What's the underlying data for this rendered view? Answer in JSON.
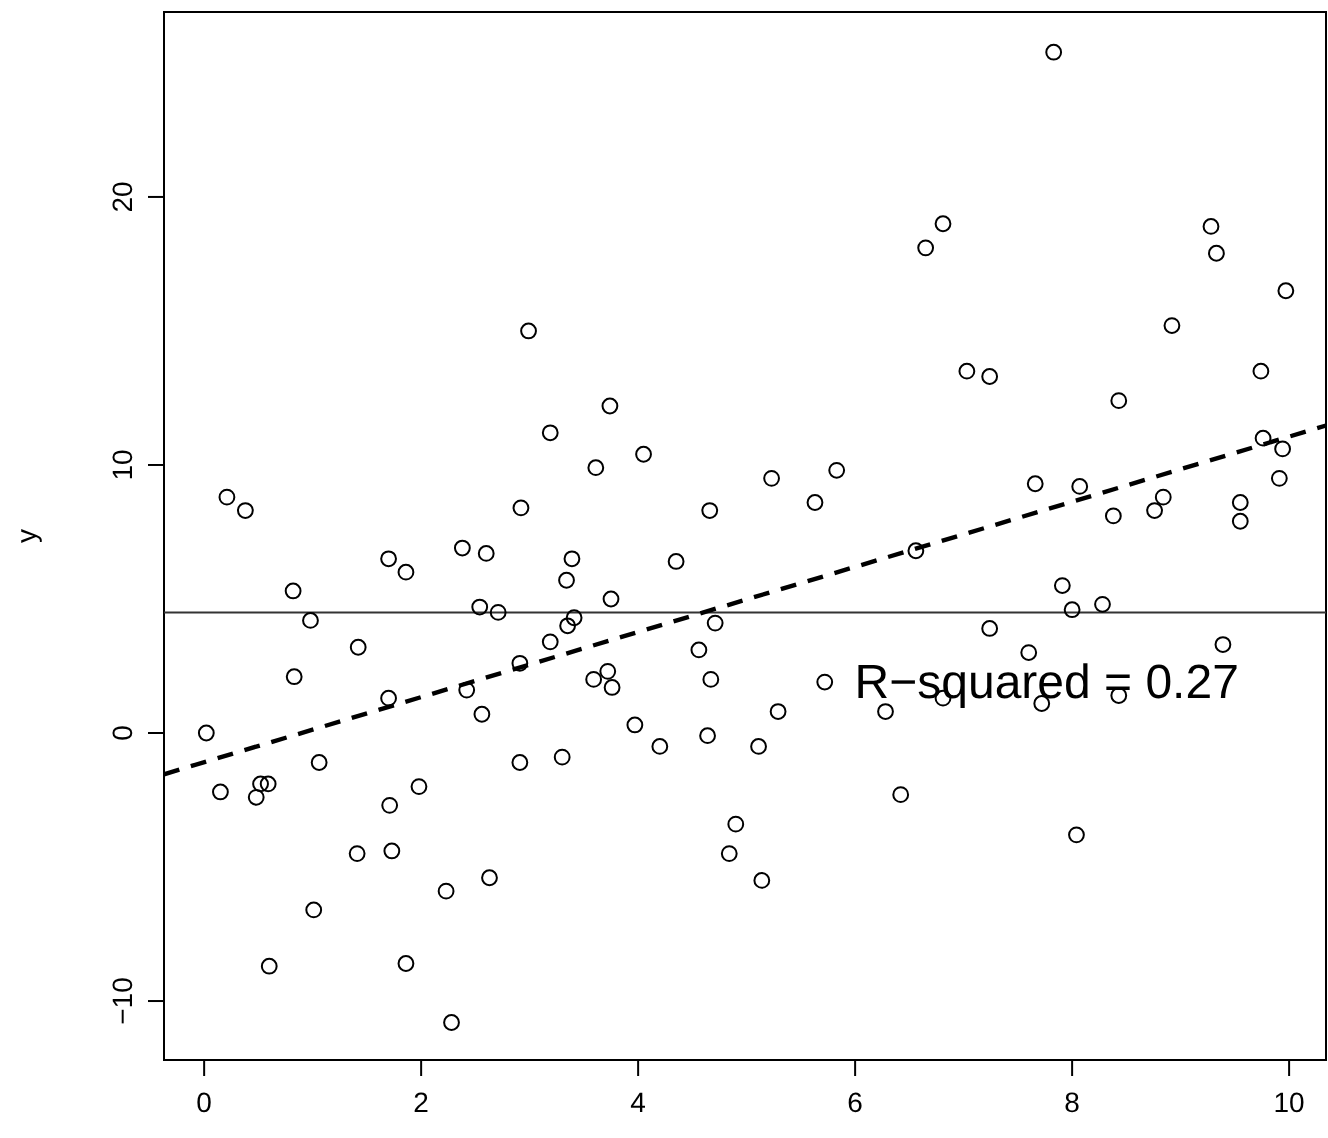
{
  "chart_data": {
    "type": "scatter",
    "ylabel": "y",
    "annotations": [
      "R−squared = 0.27"
    ],
    "xlim": [
      -0.37,
      10.34
    ],
    "ylim": [
      -12.2,
      26.9
    ],
    "xticks": [
      0,
      2,
      4,
      6,
      8,
      10
    ],
    "yticks": [
      {
        "value": -10,
        "label": "−10"
      },
      0,
      10,
      20
    ],
    "grid": false,
    "marker": "circle",
    "ref_lines": [
      {
        "axis": "y",
        "value": 4.5,
        "color": "#333333"
      }
    ],
    "series": [
      {
        "color": "#000000",
        "x": [
          2.99,
          3.74,
          3.19,
          3.61,
          4.05,
          0.21,
          0.38,
          2.92,
          4.66,
          7.83,
          6.81,
          6.65,
          9.28,
          9.33,
          9.97,
          8.92,
          7.03,
          7.24,
          9.74,
          8.43,
          9.76,
          9.94,
          5.23,
          5.83,
          5.63,
          7.66,
          8.07,
          9.91,
          8.84,
          8.76,
          8.38,
          9.55,
          9.55,
          2.38,
          2.6,
          1.7,
          1.86,
          3.39,
          3.34,
          4.35,
          0.82,
          3.75,
          2.54,
          2.71,
          0.98,
          3.41,
          3.35,
          4.71,
          3.19,
          1.42,
          4.56,
          2.91,
          0.83,
          3.59,
          3.72,
          3.76,
          2.42,
          4.67,
          1.7,
          2.56,
          0.02,
          3.97,
          4.2,
          4.64,
          5.11,
          1.06,
          2.91,
          3.3,
          0.15,
          0.52,
          0.59,
          0.48,
          1.98,
          1.71,
          1.41,
          1.73,
          4.9,
          4.84,
          5.14,
          2.63,
          2.23,
          1.01,
          0.6,
          1.86,
          2.28,
          6.56,
          7.91,
          8.28,
          8.0,
          7.24,
          7.6,
          9.39,
          7.72,
          8.43,
          6.81,
          6.28,
          5.72,
          5.29,
          6.42,
          8.04
        ],
        "values": [
          15.0,
          12.2,
          11.2,
          9.9,
          10.4,
          8.8,
          8.3,
          8.4,
          8.3,
          25.4,
          19.0,
          18.1,
          18.9,
          17.9,
          16.5,
          15.2,
          13.5,
          13.3,
          13.5,
          12.4,
          11.0,
          10.6,
          9.5,
          9.8,
          8.6,
          9.3,
          9.2,
          9.5,
          8.8,
          8.3,
          8.1,
          8.6,
          7.9,
          6.9,
          6.7,
          6.5,
          6.0,
          6.5,
          5.7,
          6.4,
          5.3,
          5.0,
          4.7,
          4.5,
          4.2,
          4.3,
          4.0,
          4.1,
          3.4,
          3.2,
          3.1,
          2.6,
          2.1,
          2.0,
          2.3,
          1.7,
          1.6,
          2.0,
          1.3,
          0.7,
          0.0,
          0.3,
          -0.5,
          -0.1,
          -0.5,
          -1.1,
          -1.1,
          -0.9,
          -2.2,
          -1.9,
          -1.9,
          -2.4,
          -2.0,
          -2.7,
          -4.5,
          -4.4,
          -3.4,
          -4.5,
          -5.5,
          -5.4,
          -5.9,
          -6.6,
          -8.7,
          -8.6,
          -10.8,
          6.8,
          5.5,
          4.8,
          4.6,
          3.9,
          3.0,
          3.3,
          1.1,
          1.4,
          1.3,
          0.8,
          1.9,
          0.8,
          -2.3,
          -3.8
        ]
      },
      {
        "type": "line",
        "color": "#000000",
        "line_style": "dashed",
        "marker": "none",
        "x": [
          -0.37,
          10.34
        ],
        "values": [
          -1.54,
          11.47
        ]
      }
    ]
  }
}
